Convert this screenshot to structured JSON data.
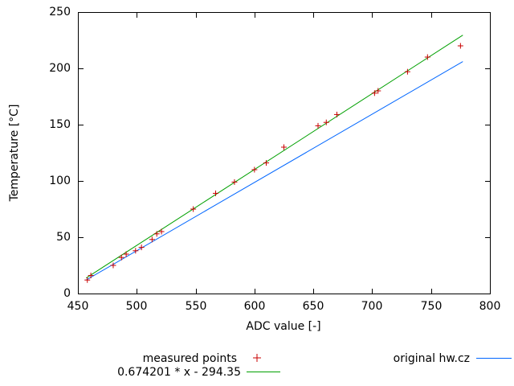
{
  "chart_data": {
    "type": "scatter",
    "title": "",
    "xlabel": "ADC value [-]",
    "ylabel": "Temperature [°C]",
    "xlim": [
      450,
      800
    ],
    "ylim": [
      0,
      250
    ],
    "x_ticks": [
      450,
      500,
      550,
      600,
      650,
      700,
      750,
      800
    ],
    "y_ticks": [
      0,
      50,
      100,
      150,
      200,
      250
    ],
    "grid": false,
    "legend_position": "below-plot",
    "series": [
      {
        "name": "measured points",
        "style": "points",
        "marker": "+",
        "color": "#c80000",
        "points": [
          [
            458,
            12
          ],
          [
            461,
            16
          ],
          [
            480,
            25
          ],
          [
            487,
            32
          ],
          [
            491,
            35
          ],
          [
            499,
            38
          ],
          [
            504,
            41
          ],
          [
            513,
            48
          ],
          [
            517,
            53
          ],
          [
            521,
            55
          ],
          [
            548,
            75
          ],
          [
            567,
            89
          ],
          [
            583,
            99
          ],
          [
            600,
            110
          ],
          [
            610,
            116
          ],
          [
            625,
            130
          ],
          [
            654,
            149
          ],
          [
            661,
            152
          ],
          [
            670,
            159
          ],
          [
            702,
            178
          ],
          [
            705,
            180
          ],
          [
            730,
            197
          ],
          [
            747,
            210
          ],
          [
            775,
            220
          ]
        ]
      },
      {
        "name": "0.674201 * x - 294.35",
        "style": "line",
        "color": "#00a000",
        "slope": 0.674201,
        "intercept": -294.35,
        "x_range": [
          457,
          777
        ]
      },
      {
        "name": "original hw.cz",
        "style": "line",
        "color": "#0066ff",
        "points": [
          [
            457,
            12
          ],
          [
            777,
            206
          ]
        ]
      }
    ]
  },
  "legend": {
    "measured_label": "measured points",
    "fit_label": "0.674201 * x - 294.35",
    "original_label": "original hw.cz"
  }
}
